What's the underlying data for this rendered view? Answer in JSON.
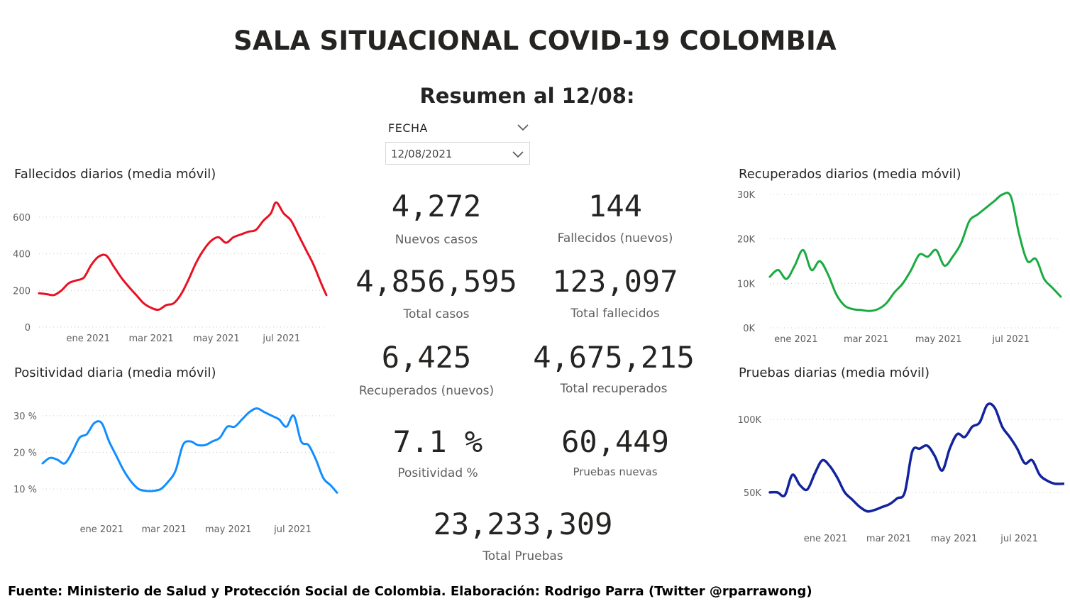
{
  "header": {
    "title": "SALA SITUACIONAL COVID-19 COLOMBIA",
    "subtitle": "Resumen al 12/08:"
  },
  "slicer": {
    "label": "FECHA",
    "value": "12/08/2021",
    "icon": "chevron-down-icon"
  },
  "kpis": {
    "nuevos_casos": {
      "value": "4,272",
      "label": "Nuevos casos"
    },
    "fallecidos_nuevos": {
      "value": "144",
      "label": "Fallecidos (nuevos)"
    },
    "total_casos": {
      "value": "4,856,595",
      "label": "Total casos"
    },
    "total_fallecidos": {
      "value": "123,097",
      "label": "Total fallecidos"
    },
    "recuperados_nuevos": {
      "value": "6,425",
      "label": "Recuperados (nuevos)"
    },
    "total_recuperados": {
      "value": "4,675,215",
      "label": "Total recuperados"
    },
    "positividad": {
      "value": "7.1 %",
      "label": "Positividad %"
    },
    "pruebas_nuevas": {
      "value": "60,449",
      "label": "Pruebas nuevas"
    },
    "total_pruebas": {
      "value": "23,233,309",
      "label": "Total Pruebas"
    }
  },
  "footer": {
    "text": "Fuente: Ministerio de Salud y Protección Social de Colombia. Elaboración: Rodrigo Parra (Twitter @rparrawong)"
  },
  "chart_data": [
    {
      "id": "fallecidos",
      "type": "line",
      "title": "Fallecidos diarios (media móvil)",
      "color": "#e81123",
      "grid": true,
      "xlim": [
        "2020-11-16",
        "2021-08-12"
      ],
      "ylim": [
        0,
        700
      ],
      "yticks": [
        {
          "v": 0,
          "label": "0"
        },
        {
          "v": 200,
          "label": "200"
        },
        {
          "v": 400,
          "label": "400"
        },
        {
          "v": 600,
          "label": "600"
        }
      ],
      "xticks": [
        {
          "d": "2021-01-01",
          "label": "ene 2021"
        },
        {
          "d": "2021-03-01",
          "label": "mar 2021"
        },
        {
          "d": "2021-05-01",
          "label": "may 2021"
        },
        {
          "d": "2021-07-01",
          "label": "jul 2021"
        }
      ],
      "x": [
        "2020-11-16",
        "2020-11-23",
        "2020-11-30",
        "2020-12-07",
        "2020-12-14",
        "2020-12-21",
        "2020-12-28",
        "2021-01-04",
        "2021-01-11",
        "2021-01-18",
        "2021-01-25",
        "2021-02-01",
        "2021-02-08",
        "2021-02-15",
        "2021-02-22",
        "2021-03-01",
        "2021-03-08",
        "2021-03-15",
        "2021-03-22",
        "2021-03-29",
        "2021-04-05",
        "2021-04-12",
        "2021-04-19",
        "2021-04-26",
        "2021-05-03",
        "2021-05-10",
        "2021-05-17",
        "2021-05-24",
        "2021-05-31",
        "2021-06-07",
        "2021-06-14",
        "2021-06-21",
        "2021-06-26",
        "2021-07-03",
        "2021-07-10",
        "2021-07-17",
        "2021-07-24",
        "2021-07-31",
        "2021-08-07",
        "2021-08-12"
      ],
      "values": [
        185,
        180,
        175,
        200,
        240,
        255,
        270,
        340,
        385,
        390,
        330,
        270,
        220,
        175,
        130,
        105,
        95,
        120,
        130,
        180,
        260,
        350,
        420,
        470,
        490,
        460,
        490,
        505,
        520,
        530,
        580,
        620,
        680,
        620,
        580,
        500,
        420,
        340,
        240,
        175
      ]
    },
    {
      "id": "positividad",
      "type": "line",
      "title": "Positividad diaria (media móvil)",
      "color": "#118dff",
      "grid": true,
      "xlim": [
        "2020-11-06",
        "2021-08-12"
      ],
      "ylim": [
        5,
        35
      ],
      "yticks": [
        {
          "v": 10,
          "label": "10 %"
        },
        {
          "v": 20,
          "label": "20 %"
        },
        {
          "v": 30,
          "label": "30 %"
        }
      ],
      "xticks": [
        {
          "d": "2021-01-01",
          "label": "ene 2021"
        },
        {
          "d": "2021-03-01",
          "label": "mar 2021"
        },
        {
          "d": "2021-05-01",
          "label": "may 2021"
        },
        {
          "d": "2021-07-01",
          "label": "jul 2021"
        }
      ],
      "x": [
        "2020-11-06",
        "2020-11-13",
        "2020-11-20",
        "2020-11-27",
        "2020-12-04",
        "2020-12-11",
        "2020-12-18",
        "2020-12-25",
        "2021-01-01",
        "2021-01-08",
        "2021-01-15",
        "2021-01-22",
        "2021-01-29",
        "2021-02-05",
        "2021-02-12",
        "2021-02-19",
        "2021-02-26",
        "2021-03-05",
        "2021-03-12",
        "2021-03-19",
        "2021-03-26",
        "2021-04-02",
        "2021-04-09",
        "2021-04-16",
        "2021-04-23",
        "2021-04-30",
        "2021-05-07",
        "2021-05-14",
        "2021-05-21",
        "2021-05-28",
        "2021-06-04",
        "2021-06-11",
        "2021-06-18",
        "2021-06-25",
        "2021-07-02",
        "2021-07-09",
        "2021-07-16",
        "2021-07-23",
        "2021-07-30",
        "2021-08-06",
        "2021-08-12"
      ],
      "values": [
        17,
        18.5,
        18,
        17,
        20,
        24,
        25,
        28,
        28,
        23,
        19,
        15,
        12,
        10,
        9.5,
        9.5,
        10,
        12,
        15,
        22,
        23,
        22,
        22,
        23,
        24,
        27,
        27,
        29,
        31,
        32,
        31,
        30,
        29,
        27,
        30,
        23,
        22,
        18,
        13,
        11,
        9
      ]
    },
    {
      "id": "recuperados",
      "type": "line",
      "title": "Recuperados diarios (media móvil)",
      "color": "#1aab40",
      "grid": true,
      "xlim": [
        "2020-12-10",
        "2021-08-12"
      ],
      "ylim": [
        0,
        30000
      ],
      "yticks": [
        {
          "v": 0,
          "label": "0K"
        },
        {
          "v": 10000,
          "label": "10K"
        },
        {
          "v": 20000,
          "label": "20K"
        },
        {
          "v": 30000,
          "label": "30K"
        }
      ],
      "xticks": [
        {
          "d": "2021-01-01",
          "label": "ene 2021"
        },
        {
          "d": "2021-03-01",
          "label": "mar 2021"
        },
        {
          "d": "2021-05-01",
          "label": "may 2021"
        },
        {
          "d": "2021-07-01",
          "label": "jul 2021"
        }
      ],
      "x": [
        "2020-12-10",
        "2020-12-17",
        "2020-12-24",
        "2020-12-31",
        "2021-01-07",
        "2021-01-14",
        "2021-01-21",
        "2021-01-28",
        "2021-02-04",
        "2021-02-11",
        "2021-02-18",
        "2021-02-25",
        "2021-03-04",
        "2021-03-11",
        "2021-03-18",
        "2021-03-25",
        "2021-04-01",
        "2021-04-08",
        "2021-04-15",
        "2021-04-22",
        "2021-04-29",
        "2021-05-06",
        "2021-05-13",
        "2021-05-20",
        "2021-05-27",
        "2021-06-03",
        "2021-06-10",
        "2021-06-17",
        "2021-06-24",
        "2021-07-01",
        "2021-07-08",
        "2021-07-15",
        "2021-07-22",
        "2021-07-29",
        "2021-08-05",
        "2021-08-12"
      ],
      "values": [
        11500,
        13000,
        11000,
        14000,
        17500,
        13000,
        15000,
        12000,
        7500,
        5000,
        4200,
        4000,
        3800,
        4200,
        5500,
        8000,
        10000,
        13000,
        16500,
        16000,
        17500,
        14000,
        16000,
        19000,
        24000,
        25500,
        27000,
        28500,
        30000,
        29500,
        21000,
        15000,
        15500,
        11000,
        9000,
        7000
      ]
    },
    {
      "id": "pruebas",
      "type": "line",
      "title": "Pruebas diarias (media móvil)",
      "color": "#12239e",
      "grid": true,
      "xlim": [
        "2020-11-10",
        "2021-08-12"
      ],
      "ylim": [
        30000,
        120000
      ],
      "yticks": [
        {
          "v": 50000,
          "label": "50K"
        },
        {
          "v": 100000,
          "label": "100K"
        }
      ],
      "xticks": [
        {
          "d": "2021-01-01",
          "label": "ene 2021"
        },
        {
          "d": "2021-03-01",
          "label": "mar 2021"
        },
        {
          "d": "2021-05-01",
          "label": "may 2021"
        },
        {
          "d": "2021-07-01",
          "label": "jul 2021"
        }
      ],
      "x": [
        "2020-11-10",
        "2020-11-17",
        "2020-11-24",
        "2020-12-01",
        "2020-12-08",
        "2020-12-15",
        "2020-12-22",
        "2020-12-29",
        "2021-01-05",
        "2021-01-12",
        "2021-01-19",
        "2021-01-26",
        "2021-02-02",
        "2021-02-09",
        "2021-02-16",
        "2021-02-23",
        "2021-03-02",
        "2021-03-09",
        "2021-03-16",
        "2021-03-23",
        "2021-03-30",
        "2021-04-06",
        "2021-04-13",
        "2021-04-20",
        "2021-04-27",
        "2021-05-04",
        "2021-05-11",
        "2021-05-18",
        "2021-05-25",
        "2021-06-01",
        "2021-06-08",
        "2021-06-15",
        "2021-06-22",
        "2021-06-29",
        "2021-07-06",
        "2021-07-13",
        "2021-07-20",
        "2021-07-27",
        "2021-08-03",
        "2021-08-12"
      ],
      "values": [
        50000,
        50000,
        48000,
        62000,
        55000,
        52000,
        63000,
        72000,
        68000,
        60000,
        50000,
        45000,
        40000,
        37000,
        38000,
        40000,
        42000,
        46000,
        50000,
        78000,
        80000,
        82000,
        75000,
        65000,
        80000,
        90000,
        88000,
        95000,
        98000,
        110000,
        108000,
        95000,
        88000,
        80000,
        70000,
        72000,
        62000,
        58000,
        56000,
        56000
      ]
    }
  ]
}
